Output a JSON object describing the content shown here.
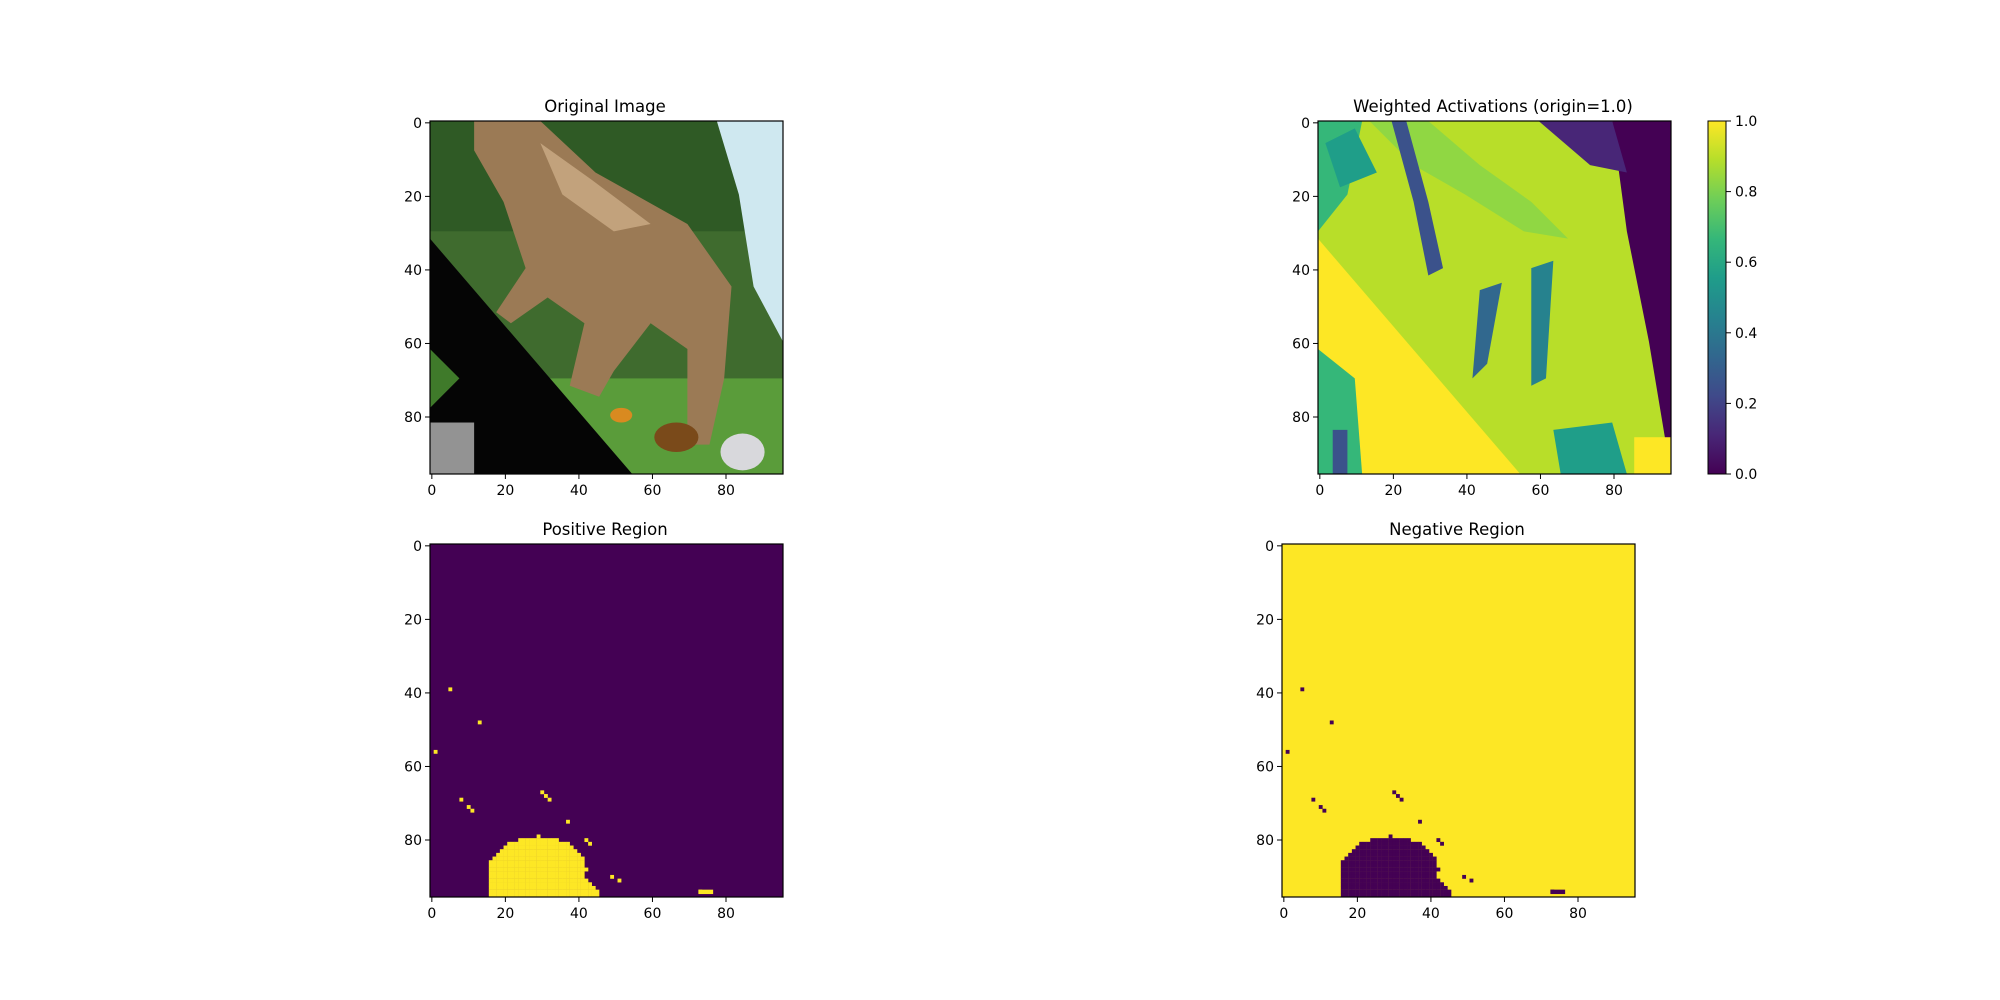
{
  "chart_data": [
    {
      "type": "heatmap",
      "title": "Original Image",
      "content": "image",
      "xlim": [
        0,
        96
      ],
      "ylim": [
        96,
        0
      ],
      "x_ticks": [
        0,
        20,
        40,
        60,
        80
      ],
      "y_ticks": [
        0,
        20,
        40,
        60,
        80
      ]
    },
    {
      "type": "heatmap",
      "title": "Weighted Activations (origin=1.0)",
      "content": "activation",
      "colormap": "viridis",
      "xlim": [
        0,
        96
      ],
      "ylim": [
        96,
        0
      ],
      "x_ticks": [
        0,
        20,
        40,
        60,
        80
      ],
      "y_ticks": [
        0,
        20,
        40,
        60,
        80
      ],
      "colorbar": {
        "range": [
          0.0,
          1.0
        ],
        "ticks": [
          "0.0",
          "0.2",
          "0.4",
          "0.6",
          "0.8",
          "1.0"
        ]
      }
    },
    {
      "type": "heatmap",
      "title": "Positive Region",
      "content": "mask",
      "colormap": "viridis",
      "xlim": [
        0,
        96
      ],
      "ylim": [
        96,
        0
      ],
      "x_ticks": [
        0,
        20,
        40,
        60,
        80
      ],
      "y_ticks": [
        0,
        20,
        40,
        60,
        80
      ]
    },
    {
      "type": "heatmap",
      "title": "Negative Region",
      "content": "mask-inverted",
      "colormap": "viridis",
      "xlim": [
        0,
        96
      ],
      "ylim": [
        96,
        0
      ],
      "x_ticks": [
        0,
        20,
        40,
        60,
        80
      ],
      "y_ticks": [
        0,
        20,
        40,
        60,
        80
      ]
    }
  ],
  "colors": {
    "viridis_low": "#440154",
    "viridis_high": "#fde725",
    "mask_sparse_points": [
      [
        5,
        39
      ],
      [
        13,
        48
      ],
      [
        1,
        56
      ],
      [
        8,
        69
      ],
      [
        10,
        71
      ],
      [
        11,
        72
      ],
      [
        30,
        67
      ],
      [
        31,
        68
      ],
      [
        32,
        69
      ],
      [
        37,
        75
      ],
      [
        42,
        80
      ],
      [
        43,
        81
      ],
      [
        49,
        90
      ],
      [
        51,
        91
      ],
      [
        73,
        94
      ]
    ]
  }
}
